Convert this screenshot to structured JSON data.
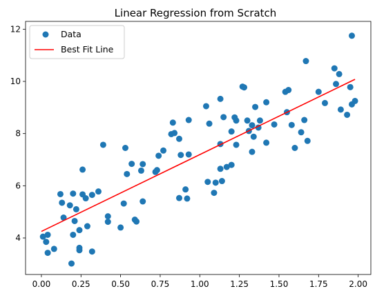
{
  "chart_data": {
    "type": "scatter",
    "title": "Linear Regression from Scratch",
    "xlabel": "",
    "ylabel": "",
    "xlim": [
      -0.1,
      2.08
    ],
    "ylim": [
      2.6,
      12.3
    ],
    "xticks": [
      0.0,
      0.25,
      0.5,
      0.75,
      1.0,
      1.25,
      1.5,
      1.75,
      2.0
    ],
    "xtick_labels": [
      "0.00",
      "0.25",
      "0.50",
      "0.75",
      "1.00",
      "1.25",
      "1.50",
      "1.75",
      "2.00"
    ],
    "yticks": [
      4,
      6,
      8,
      10,
      12
    ],
    "ytick_labels": [
      "4",
      "6",
      "8",
      "10",
      "12"
    ],
    "grid": false,
    "legend_position": "top-left",
    "series": [
      {
        "name": "Data",
        "kind": "scatter",
        "color": "#1f77b4",
        "points": [
          [
            0.01,
            4.05
          ],
          [
            0.03,
            3.85
          ],
          [
            0.04,
            4.12
          ],
          [
            0.04,
            3.43
          ],
          [
            0.08,
            3.58
          ],
          [
            0.12,
            5.68
          ],
          [
            0.13,
            5.35
          ],
          [
            0.14,
            4.78
          ],
          [
            0.18,
            5.25
          ],
          [
            0.19,
            3.02
          ],
          [
            0.2,
            5.7
          ],
          [
            0.2,
            4.12
          ],
          [
            0.21,
            4.65
          ],
          [
            0.22,
            5.1
          ],
          [
            0.24,
            4.3
          ],
          [
            0.24,
            3.62
          ],
          [
            0.24,
            3.53
          ],
          [
            0.26,
            6.62
          ],
          [
            0.26,
            5.67
          ],
          [
            0.28,
            5.52
          ],
          [
            0.29,
            4.45
          ],
          [
            0.32,
            5.65
          ],
          [
            0.32,
            3.48
          ],
          [
            0.36,
            5.78
          ],
          [
            0.39,
            7.57
          ],
          [
            0.42,
            4.83
          ],
          [
            0.42,
            4.62
          ],
          [
            0.5,
            4.4
          ],
          [
            0.52,
            5.32
          ],
          [
            0.53,
            7.45
          ],
          [
            0.54,
            6.45
          ],
          [
            0.57,
            6.84
          ],
          [
            0.59,
            4.7
          ],
          [
            0.6,
            4.63
          ],
          [
            0.63,
            6.58
          ],
          [
            0.64,
            6.83
          ],
          [
            0.64,
            5.4
          ],
          [
            0.72,
            6.53
          ],
          [
            0.73,
            6.6
          ],
          [
            0.74,
            7.15
          ],
          [
            0.77,
            7.35
          ],
          [
            0.82,
            7.98
          ],
          [
            0.83,
            8.42
          ],
          [
            0.84,
            8.02
          ],
          [
            0.87,
            7.8
          ],
          [
            0.87,
            5.53
          ],
          [
            0.88,
            7.18
          ],
          [
            0.91,
            5.86
          ],
          [
            0.92,
            5.51
          ],
          [
            0.93,
            7.2
          ],
          [
            0.93,
            8.52
          ],
          [
            1.04,
            9.05
          ],
          [
            1.05,
            6.15
          ],
          [
            1.06,
            8.38
          ],
          [
            1.09,
            5.73
          ],
          [
            1.1,
            6.12
          ],
          [
            1.13,
            9.33
          ],
          [
            1.13,
            7.6
          ],
          [
            1.13,
            6.65
          ],
          [
            1.14,
            6.18
          ],
          [
            1.15,
            8.63
          ],
          [
            1.17,
            6.72
          ],
          [
            1.2,
            6.8
          ],
          [
            1.2,
            8.08
          ],
          [
            1.22,
            8.62
          ],
          [
            1.23,
            8.5
          ],
          [
            1.23,
            7.57
          ],
          [
            1.27,
            9.8
          ],
          [
            1.28,
            9.77
          ],
          [
            1.3,
            8.5
          ],
          [
            1.31,
            8.1
          ],
          [
            1.33,
            7.3
          ],
          [
            1.33,
            8.32
          ],
          [
            1.34,
            7.88
          ],
          [
            1.35,
            9.02
          ],
          [
            1.37,
            8.23
          ],
          [
            1.38,
            8.5
          ],
          [
            1.42,
            9.2
          ],
          [
            1.42,
            7.65
          ],
          [
            1.47,
            8.35
          ],
          [
            1.54,
            9.6
          ],
          [
            1.55,
            8.82
          ],
          [
            1.56,
            9.67
          ],
          [
            1.58,
            8.33
          ],
          [
            1.6,
            7.45
          ],
          [
            1.64,
            8.05
          ],
          [
            1.66,
            8.52
          ],
          [
            1.67,
            10.78
          ],
          [
            1.68,
            7.72
          ],
          [
            1.75,
            9.6
          ],
          [
            1.79,
            9.17
          ],
          [
            1.85,
            10.5
          ],
          [
            1.86,
            9.9
          ],
          [
            1.88,
            10.28
          ],
          [
            1.89,
            8.92
          ],
          [
            1.93,
            8.72
          ],
          [
            1.95,
            9.78
          ],
          [
            1.96,
            11.75
          ],
          [
            1.96,
            9.12
          ],
          [
            1.98,
            9.25
          ]
        ]
      },
      {
        "name": "Best Fit Line",
        "kind": "line",
        "color": "#ff0000",
        "x": [
          0.0,
          1.98
        ],
        "y": [
          4.25,
          10.08
        ]
      }
    ]
  }
}
